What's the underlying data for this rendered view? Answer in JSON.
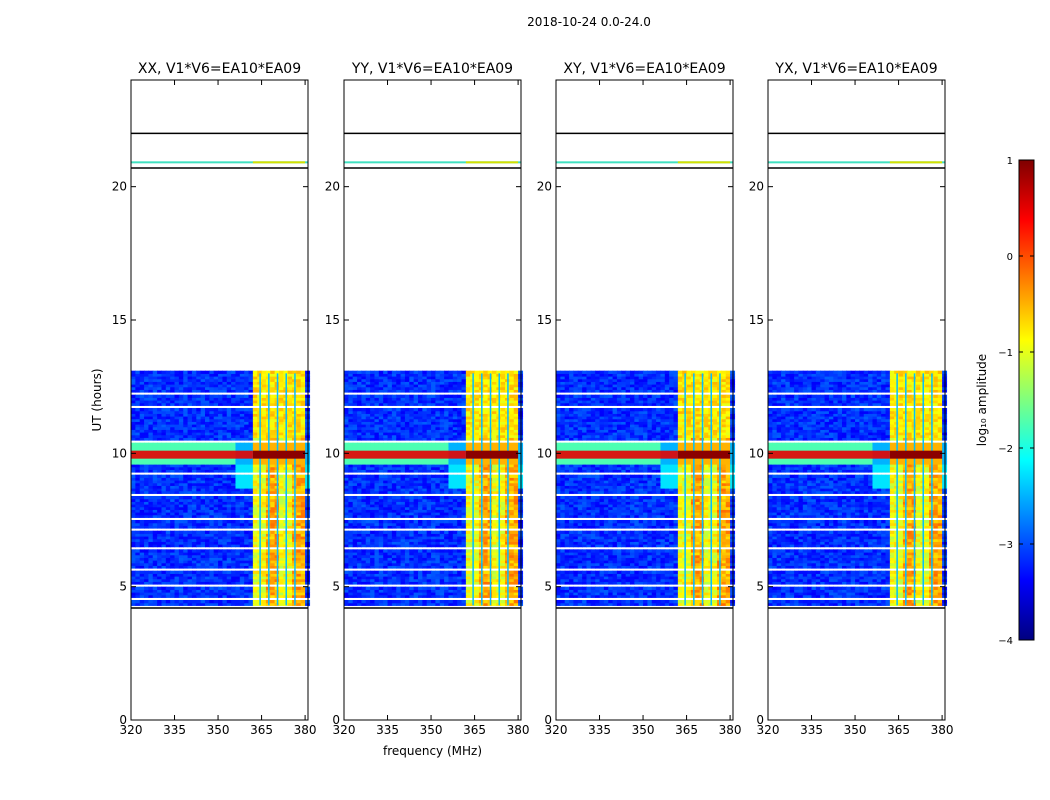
{
  "figure_title": "2018-10-24 0.0-24.0",
  "colorbar": {
    "label": "log₁₀ amplitude",
    "min": -4,
    "max": 1,
    "ticks": [
      1,
      0,
      -1,
      -2,
      -3,
      -4
    ],
    "tick_labels": [
      "1",
      "0",
      "−1",
      "−2",
      "−3",
      "−4"
    ],
    "colormap": "jet",
    "colors": [
      "#00007f",
      "#0000ff",
      "#007fff",
      "#00ffff",
      "#7fff7f",
      "#ffff00",
      "#ff7f00",
      "#ff0000",
      "#7f0000"
    ]
  },
  "chart_data": [
    {
      "type": "heatmap",
      "title": "XX, V1*V6=EA10*EA09",
      "xlabel": "",
      "ylabel": "UT (hours)",
      "xlim": [
        320,
        381
      ],
      "ylim": [
        0,
        24
      ],
      "xticks": [
        320,
        335,
        350,
        365,
        380
      ],
      "yticks": [
        0,
        5,
        10,
        15,
        20
      ],
      "data_rows_hours": [
        4.3,
        13.0
      ],
      "flagged_rows_hours": [
        4.2,
        20.7,
        22.0
      ],
      "high_band_mhz": [
        362,
        380
      ],
      "strong_rfi_hours": [
        9.8,
        10.1
      ]
    },
    {
      "type": "heatmap",
      "title": "YY, V1*V6=EA10*EA09",
      "xlabel": "frequency (MHz)",
      "ylabel": "",
      "xlim": [
        320,
        381
      ],
      "ylim": [
        0,
        24
      ],
      "xticks": [
        320,
        335,
        350,
        365,
        380
      ],
      "yticks": [
        0,
        5,
        10,
        15,
        20
      ],
      "data_rows_hours": [
        4.3,
        13.0
      ],
      "flagged_rows_hours": [
        4.2,
        20.7,
        22.0
      ],
      "high_band_mhz": [
        362,
        380
      ],
      "strong_rfi_hours": [
        9.8,
        10.1
      ]
    },
    {
      "type": "heatmap",
      "title": "XY, V1*V6=EA10*EA09",
      "xlabel": "",
      "ylabel": "",
      "xlim": [
        320,
        381
      ],
      "ylim": [
        0,
        24
      ],
      "xticks": [
        320,
        335,
        350,
        365,
        380
      ],
      "yticks": [
        0,
        5,
        10,
        15,
        20
      ],
      "data_rows_hours": [
        4.3,
        13.0
      ],
      "flagged_rows_hours": [
        4.2,
        20.7,
        22.0
      ],
      "high_band_mhz": [
        362,
        380
      ],
      "strong_rfi_hours": [
        9.8,
        10.1
      ]
    },
    {
      "type": "heatmap",
      "title": "YX, V1*V6=EA10*EA09",
      "xlabel": "",
      "ylabel": "",
      "xlim": [
        320,
        381
      ],
      "ylim": [
        0,
        24
      ],
      "xticks": [
        320,
        335,
        350,
        365,
        380
      ],
      "yticks": [
        0,
        5,
        10,
        15,
        20
      ],
      "data_rows_hours": [
        4.3,
        13.0
      ],
      "flagged_rows_hours": [
        4.2,
        20.7,
        22.0
      ],
      "high_band_mhz": [
        362,
        380
      ],
      "strong_rfi_hours": [
        9.8,
        10.1
      ]
    }
  ]
}
